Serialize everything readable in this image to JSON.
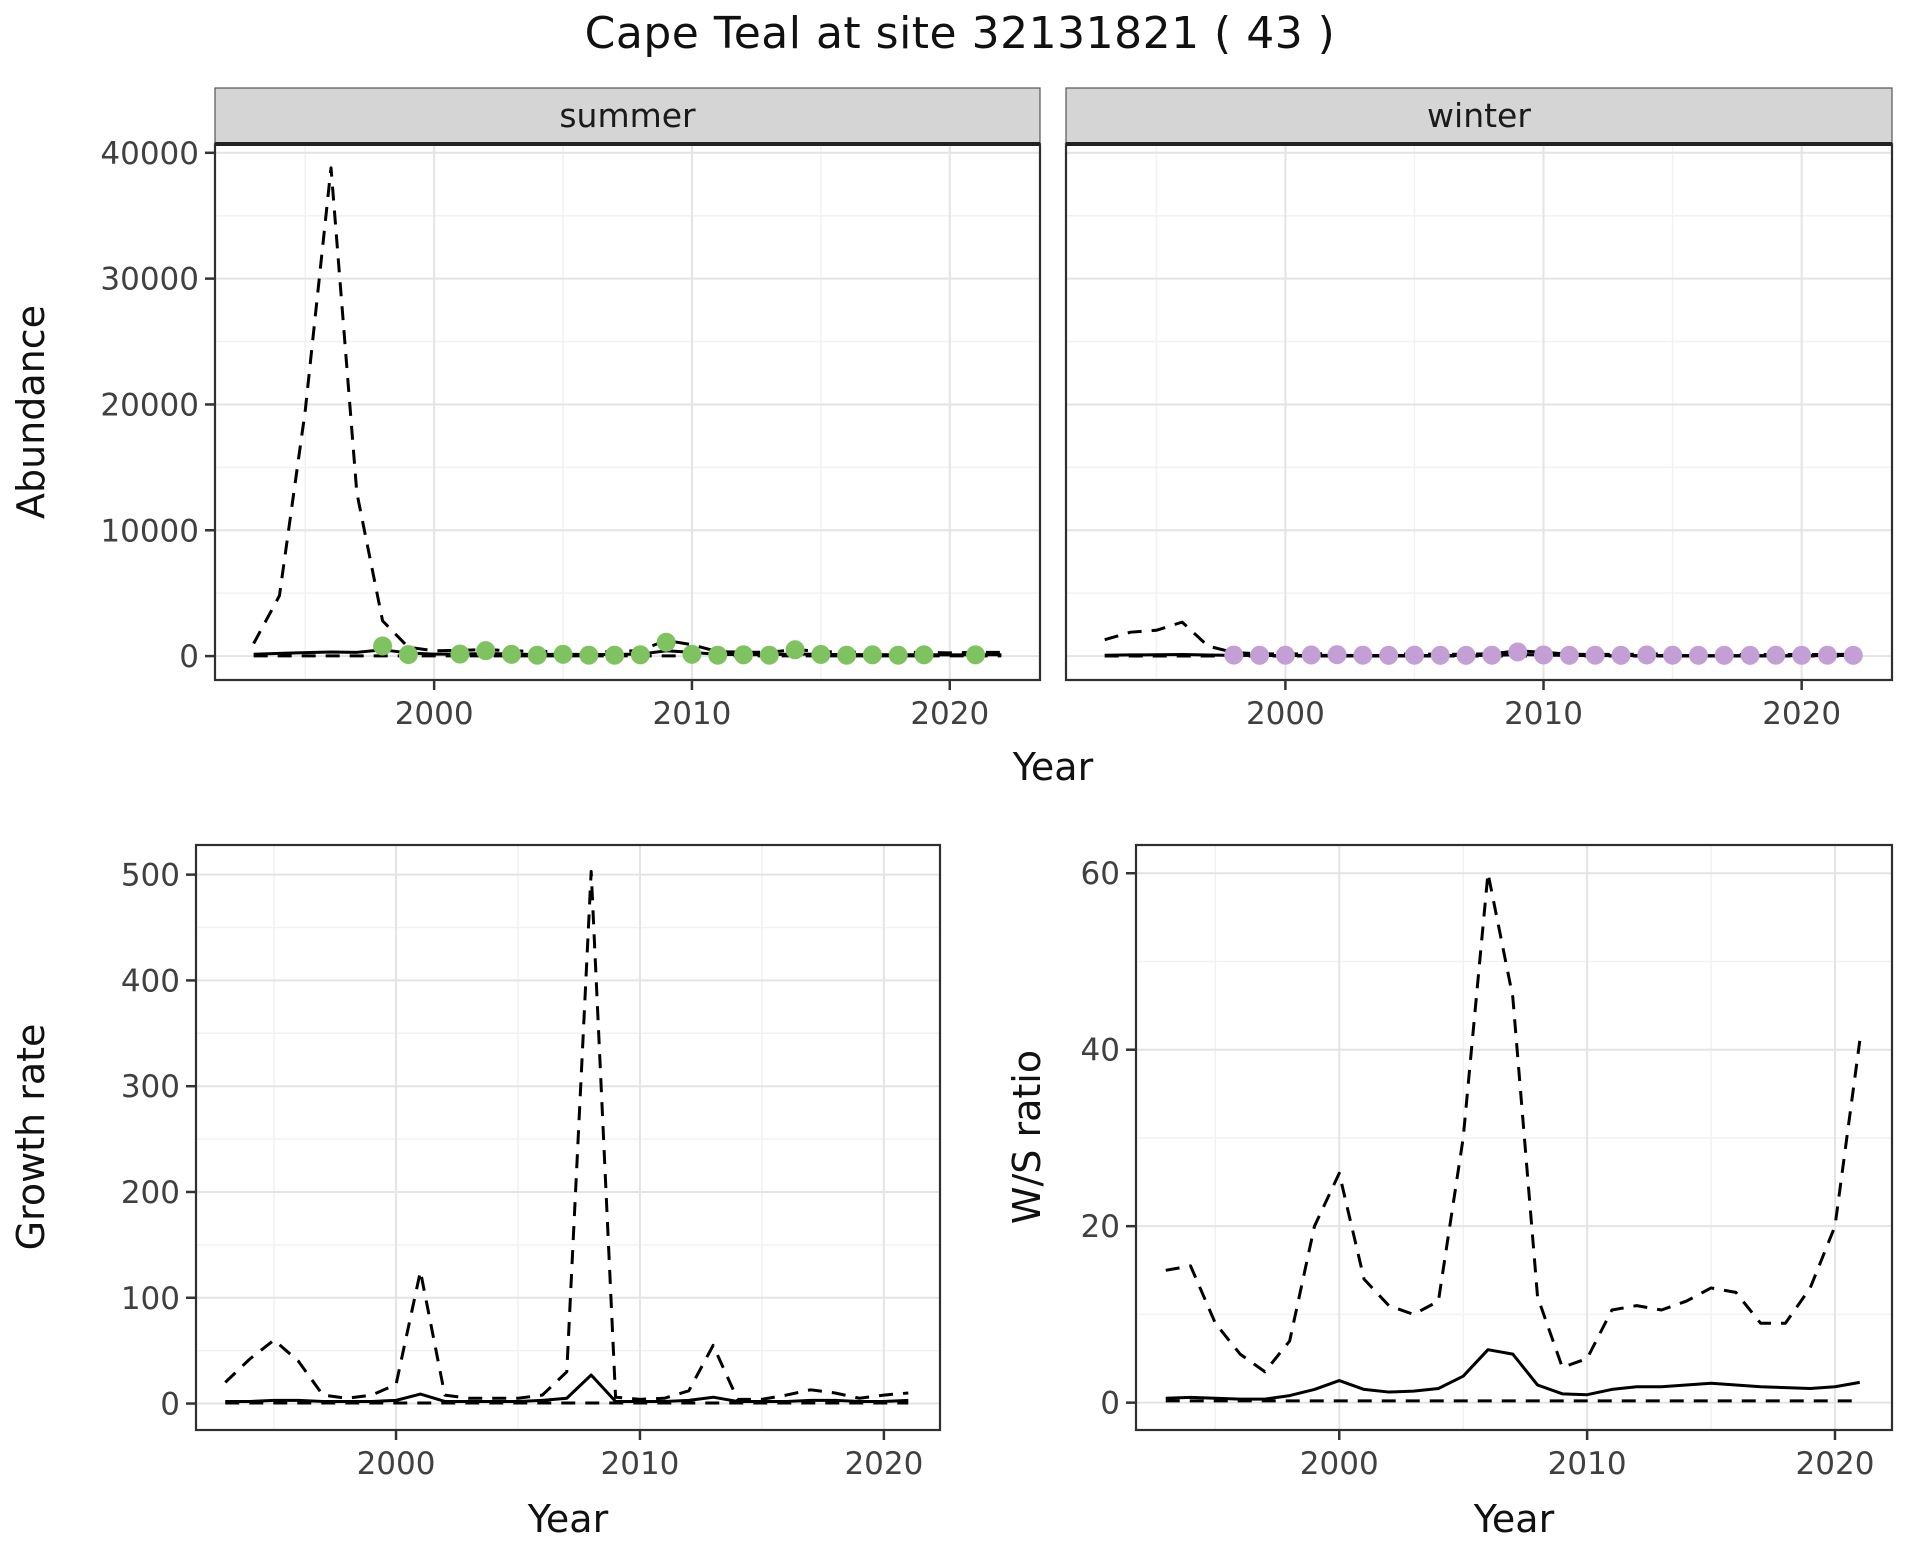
{
  "title": "Cape Teal at site 32131821 ( 43 )",
  "colors": {
    "summer_points": "#7fc360",
    "winter_points": "#c49fd6",
    "line": "#000000",
    "strip_fill": "#d5d5d5",
    "grid_major": "#e4e4e4",
    "grid_minor": "#f2f2f2",
    "panel_border": "#2f2f2f",
    "tick_label": "#404040",
    "axis_title": "#111111"
  },
  "chart_data": [
    {
      "id": "abundance",
      "type": "line",
      "xlabel": "Year",
      "ylabel": "Abundance",
      "x_range": [
        1991.5,
        2023.5
      ],
      "y_range": [
        -1900,
        40700
      ],
      "x_ticks": [
        2000,
        2010,
        2020
      ],
      "x_minor": [
        1995,
        2005,
        2015
      ],
      "y_ticks": [
        0,
        10000,
        20000,
        30000,
        40000
      ],
      "y_minor": [
        5000,
        15000,
        25000,
        35000
      ],
      "years": [
        1993,
        1994,
        1995,
        1996,
        1997,
        1998,
        1999,
        2000,
        2001,
        2002,
        2003,
        2004,
        2005,
        2006,
        2007,
        2008,
        2009,
        2010,
        2011,
        2012,
        2013,
        2014,
        2015,
        2016,
        2017,
        2018,
        2019,
        2020,
        2021,
        2022
      ],
      "facets": [
        {
          "label": "summer",
          "series": [
            {
              "name": "upper_ci",
              "style": "dashed",
              "y": [
                1000,
                4800,
                19500,
                38800,
                13000,
                2800,
                700,
                420,
                450,
                520,
                420,
                360,
                400,
                350,
                350,
                450,
                1250,
                900,
                350,
                310,
                300,
                520,
                360,
                300,
                310,
                300,
                300,
                260,
                300,
                300
              ]
            },
            {
              "name": "estimate",
              "style": "solid",
              "y": [
                150,
                220,
                280,
                330,
                300,
                500,
                250,
                160,
                160,
                210,
                160,
                130,
                150,
                125,
                125,
                160,
                420,
                300,
                135,
                115,
                110,
                170,
                135,
                115,
                115,
                110,
                105,
                100,
                105,
                105
              ]
            },
            {
              "name": "lower_ci",
              "style": "dashed",
              "y": [
                20,
                20,
                20,
                20,
                20,
                20,
                20,
                20,
                20,
                20,
                20,
                20,
                20,
                20,
                20,
                20,
                20,
                20,
                20,
                20,
                20,
                20,
                20,
                20,
                20,
                20,
                20,
                20,
                20,
                20
              ]
            }
          ],
          "points": {
            "name": "observed_counts",
            "color": "summer_points",
            "x": [
              1998,
              1999,
              2001,
              2002,
              2003,
              2004,
              2005,
              2006,
              2007,
              2008,
              2009,
              2010,
              2011,
              2012,
              2013,
              2014,
              2015,
              2016,
              2017,
              2018,
              2019,
              2021
            ],
            "y": [
              800,
              120,
              160,
              430,
              140,
              70,
              140,
              70,
              70,
              100,
              1100,
              140,
              70,
              100,
              70,
              500,
              130,
              70,
              100,
              70,
              100,
              100
            ]
          }
        },
        {
          "label": "winter",
          "series": [
            {
              "name": "upper_ci",
              "style": "dashed",
              "y": [
                1300,
                1900,
                2050,
                2700,
                800,
                280,
                185,
                165,
                180,
                200,
                170,
                150,
                160,
                150,
                150,
                180,
                420,
                300,
                150,
                135,
                130,
                170,
                150,
                130,
                130,
                128,
                128,
                122,
                130,
                140
              ]
            },
            {
              "name": "estimate",
              "style": "solid",
              "y": [
                70,
                95,
                105,
                125,
                82,
                60,
                52,
                50,
                56,
                60,
                52,
                46,
                50,
                46,
                46,
                56,
                120,
                90,
                46,
                42,
                41,
                52,
                46,
                42,
                42,
                41,
                41,
                40,
                41,
                45
              ]
            },
            {
              "name": "lower_ci",
              "style": "dashed",
              "y": [
                10,
                10,
                10,
                10,
                10,
                10,
                10,
                10,
                10,
                10,
                10,
                10,
                10,
                10,
                10,
                10,
                10,
                10,
                10,
                10,
                10,
                10,
                10,
                10,
                10,
                10,
                10,
                10,
                10,
                10
              ]
            }
          ],
          "points": {
            "name": "observed_counts",
            "color": "winter_points",
            "x": [
              1998,
              1999,
              2000,
              2001,
              2002,
              2003,
              2004,
              2005,
              2006,
              2007,
              2008,
              2009,
              2010,
              2011,
              2012,
              2013,
              2014,
              2015,
              2016,
              2017,
              2018,
              2019,
              2020,
              2021,
              2022
            ],
            "y": [
              80,
              60,
              70,
              90,
              110,
              70,
              60,
              70,
              60,
              60,
              70,
              330,
              90,
              60,
              70,
              60,
              90,
              70,
              60,
              60,
              60,
              70,
              60,
              70,
              60
            ]
          }
        }
      ]
    },
    {
      "id": "growth_rate",
      "type": "line",
      "xlabel": "Year",
      "ylabel": "Growth rate",
      "x_range": [
        1991.8,
        2022.3
      ],
      "y_range": [
        -25,
        528
      ],
      "x_ticks": [
        2000,
        2010,
        2020
      ],
      "x_minor": [
        1995,
        2005,
        2015
      ],
      "y_ticks": [
        0,
        100,
        200,
        300,
        400,
        500
      ],
      "y_minor": [
        50,
        150,
        250,
        350,
        450
      ],
      "years": [
        1993,
        1994,
        1995,
        1996,
        1997,
        1998,
        1999,
        2000,
        2001,
        2002,
        2003,
        2004,
        2005,
        2006,
        2007,
        2008,
        2009,
        2010,
        2011,
        2012,
        2013,
        2014,
        2015,
        2016,
        2017,
        2018,
        2019,
        2020,
        2021
      ],
      "series": [
        {
          "name": "upper_ci",
          "style": "dashed",
          "y": [
            20,
            42,
            60,
            40,
            8,
            5,
            8,
            18,
            125,
            8,
            5,
            5,
            5,
            8,
            30,
            503,
            6,
            4,
            5,
            12,
            55,
            4,
            4,
            8,
            13,
            10,
            5,
            8,
            10
          ]
        },
        {
          "name": "estimate",
          "style": "solid",
          "y": [
            2,
            2,
            3,
            3,
            2,
            2,
            2,
            3,
            9,
            2,
            2,
            2,
            2,
            3,
            5,
            27,
            2,
            2,
            2,
            3,
            6,
            2,
            2,
            2,
            3,
            3,
            2,
            2,
            3
          ]
        },
        {
          "name": "lower_ci",
          "style": "dashed",
          "y": [
            0.5,
            0.5,
            0.5,
            0.5,
            0.5,
            0.5,
            0.5,
            0.5,
            0.5,
            0.5,
            0.5,
            0.5,
            0.5,
            0.5,
            0.5,
            0.5,
            0.5,
            0.5,
            0.5,
            0.5,
            0.5,
            0.5,
            0.5,
            0.5,
            0.5,
            0.5,
            0.5,
            0.5,
            0.5
          ]
        }
      ]
    },
    {
      "id": "ws_ratio",
      "type": "line",
      "xlabel": "Year",
      "ylabel": "W/S ratio",
      "x_range": [
        1991.8,
        2022.3
      ],
      "y_range": [
        -3.1,
        63.2
      ],
      "x_ticks": [
        2000,
        2010,
        2020
      ],
      "x_minor": [
        1995,
        2005,
        2015
      ],
      "y_ticks": [
        0,
        20,
        40,
        60
      ],
      "y_minor": [
        10,
        30,
        50
      ],
      "years": [
        1993,
        1994,
        1995,
        1996,
        1997,
        1998,
        1999,
        2000,
        2001,
        2002,
        2003,
        2004,
        2005,
        2006,
        2007,
        2008,
        2009,
        2010,
        2011,
        2012,
        2013,
        2014,
        2015,
        2016,
        2017,
        2018,
        2019,
        2020,
        2021
      ],
      "series": [
        {
          "name": "upper_ci",
          "style": "dashed",
          "y": [
            15,
            15.5,
            9,
            5.5,
            3.5,
            7,
            20,
            26,
            14,
            11,
            10,
            11.5,
            30,
            60,
            46,
            12,
            4,
            5,
            10.5,
            11,
            10.5,
            11.5,
            13,
            12.5,
            9,
            9,
            13,
            20,
            41
          ]
        },
        {
          "name": "estimate",
          "style": "solid",
          "y": [
            0.5,
            0.6,
            0.5,
            0.4,
            0.4,
            0.8,
            1.5,
            2.5,
            1.5,
            1.2,
            1.3,
            1.6,
            3,
            6,
            5.5,
            2,
            1,
            0.9,
            1.5,
            1.8,
            1.8,
            2,
            2.2,
            2,
            1.8,
            1.7,
            1.6,
            1.8,
            2.3
          ]
        },
        {
          "name": "lower_ci",
          "style": "dashed",
          "y": [
            0.2,
            0.2,
            0.2,
            0.2,
            0.2,
            0.2,
            0.2,
            0.2,
            0.2,
            0.2,
            0.2,
            0.2,
            0.2,
            0.2,
            0.2,
            0.2,
            0.2,
            0.2,
            0.2,
            0.2,
            0.2,
            0.2,
            0.2,
            0.2,
            0.2,
            0.2,
            0.2,
            0.2,
            0.2
          ]
        }
      ]
    }
  ]
}
